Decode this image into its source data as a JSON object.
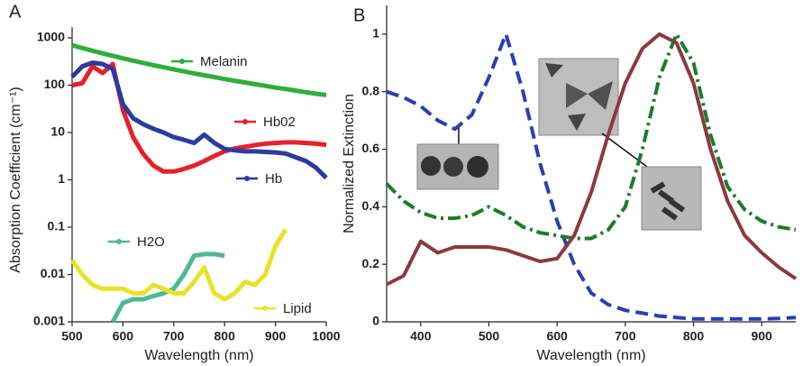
{
  "chart_data": [
    {
      "type": "line",
      "panel_label": "A",
      "xlabel": "Wavelength (nm)",
      "ylabel": "Absorption Coefficient (cm⁻¹)",
      "log_y": true,
      "xlim": [
        500,
        1000
      ],
      "ylim": [
        0.001,
        1000
      ],
      "xticks": [
        500,
        600,
        700,
        800,
        900,
        1000
      ],
      "yticks": [
        0.001,
        0.01,
        0.1,
        1,
        10,
        100,
        1000
      ],
      "x": [
        500,
        520,
        540,
        560,
        580,
        600,
        620,
        640,
        660,
        680,
        700,
        720,
        740,
        760,
        780,
        800,
        820,
        840,
        860,
        880,
        900,
        920,
        940,
        960,
        980,
        1000
      ],
      "series": [
        {
          "name": "Melanin",
          "color": "#2fae3c",
          "values": [
            700,
            610,
            535,
            471,
            417,
            370,
            330,
            295,
            265,
            239,
            216,
            196,
            178,
            162,
            148,
            135,
            124,
            114,
            105,
            97,
            89,
            83,
            77,
            71,
            66,
            62
          ]
        },
        {
          "name": "Hb02",
          "color": "#e8202a",
          "values": [
            100,
            110,
            250,
            180,
            280,
            30,
            8,
            3.5,
            2,
            1.5,
            1.5,
            1.7,
            2,
            2.5,
            3.2,
            4,
            4.6,
            5,
            5.4,
            5.8,
            6,
            6.2,
            6.2,
            6,
            5.8,
            5.5
          ]
        },
        {
          "name": "Hb",
          "color": "#2d3a9e",
          "values": [
            150,
            250,
            300,
            280,
            220,
            40,
            20,
            15,
            12,
            10,
            8,
            7,
            6,
            9,
            6,
            4.5,
            4.2,
            4,
            4,
            3.9,
            3.8,
            3.6,
            3,
            2.5,
            1.8,
            1.1
          ]
        },
        {
          "name": "H2O",
          "color": "#4fb896",
          "values": [
            null,
            null,
            null,
            null,
            0.001,
            0.0025,
            0.003,
            0.003,
            0.0035,
            0.004,
            0.005,
            0.01,
            0.025,
            0.027,
            0.027,
            0.025,
            null,
            null,
            null,
            null,
            null,
            null,
            null,
            null,
            null,
            null
          ]
        },
        {
          "name": "Lipid",
          "color": "#e8e32a",
          "values": [
            0.02,
            0.01,
            0.006,
            0.005,
            0.005,
            0.005,
            0.004,
            0.004,
            0.006,
            0.005,
            0.004,
            0.004,
            0.007,
            0.014,
            0.004,
            0.003,
            0.004,
            0.007,
            0.006,
            0.01,
            0.04,
            0.09,
            null,
            null,
            null,
            null
          ]
        }
      ]
    },
    {
      "type": "line",
      "panel_label": "B",
      "xlabel": "Wavelength (nm)",
      "ylabel": "Normalized Extinction",
      "log_y": false,
      "xlim": [
        350,
        950
      ],
      "ylim": [
        0,
        1.1
      ],
      "xticks": [
        400,
        500,
        600,
        700,
        800,
        900
      ],
      "yticks": [
        0,
        0.2,
        0.4,
        0.6,
        0.8,
        1
      ],
      "x": [
        350,
        375,
        400,
        425,
        450,
        475,
        500,
        525,
        550,
        575,
        600,
        625,
        650,
        675,
        700,
        725,
        750,
        775,
        800,
        825,
        850,
        875,
        900,
        925,
        950
      ],
      "series": [
        {
          "color": "#2a3fb0",
          "dash": "dashed",
          "values": [
            0.8,
            0.78,
            0.75,
            0.7,
            0.67,
            0.72,
            0.85,
            1.0,
            0.8,
            0.55,
            0.35,
            0.2,
            0.1,
            0.06,
            0.04,
            0.03,
            0.02,
            0.015,
            0.01,
            0.01,
            0.01,
            0.01,
            0.01,
            0.012,
            0.015
          ]
        },
        {
          "color": "#1e7a2a",
          "dash": "dashdot",
          "values": [
            0.48,
            0.42,
            0.38,
            0.36,
            0.36,
            0.37,
            0.4,
            0.37,
            0.33,
            0.31,
            0.3,
            0.29,
            0.29,
            0.32,
            0.4,
            0.6,
            0.85,
            1.0,
            0.9,
            0.65,
            0.47,
            0.39,
            0.35,
            0.33,
            0.32
          ]
        },
        {
          "color": "#8b3a3e",
          "dash": "solid",
          "values": [
            0.13,
            0.16,
            0.28,
            0.24,
            0.26,
            0.26,
            0.26,
            0.25,
            0.23,
            0.21,
            0.22,
            0.3,
            0.45,
            0.65,
            0.83,
            0.95,
            1.0,
            0.97,
            0.83,
            0.6,
            0.42,
            0.3,
            0.24,
            0.19,
            0.15
          ]
        }
      ]
    }
  ]
}
